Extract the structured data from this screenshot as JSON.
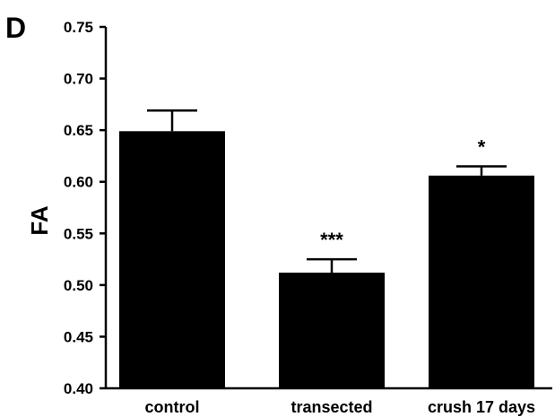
{
  "panel_label": "D",
  "chart_data": {
    "type": "bar",
    "title": "",
    "xlabel": "",
    "ylabel": "FA",
    "ylim": [
      0.4,
      0.75
    ],
    "yticks": [
      "0.40",
      "0.45",
      "0.50",
      "0.55",
      "0.60",
      "0.65",
      "0.70",
      "0.75"
    ],
    "categories": [
      "control",
      "transected",
      "crush 17 days"
    ],
    "values": [
      0.649,
      0.512,
      0.606
    ],
    "errors": [
      0.02,
      0.013,
      0.009
    ],
    "significance": [
      "",
      "***",
      "*"
    ],
    "bar_color": "#000000",
    "grid": false,
    "legend": "none"
  }
}
